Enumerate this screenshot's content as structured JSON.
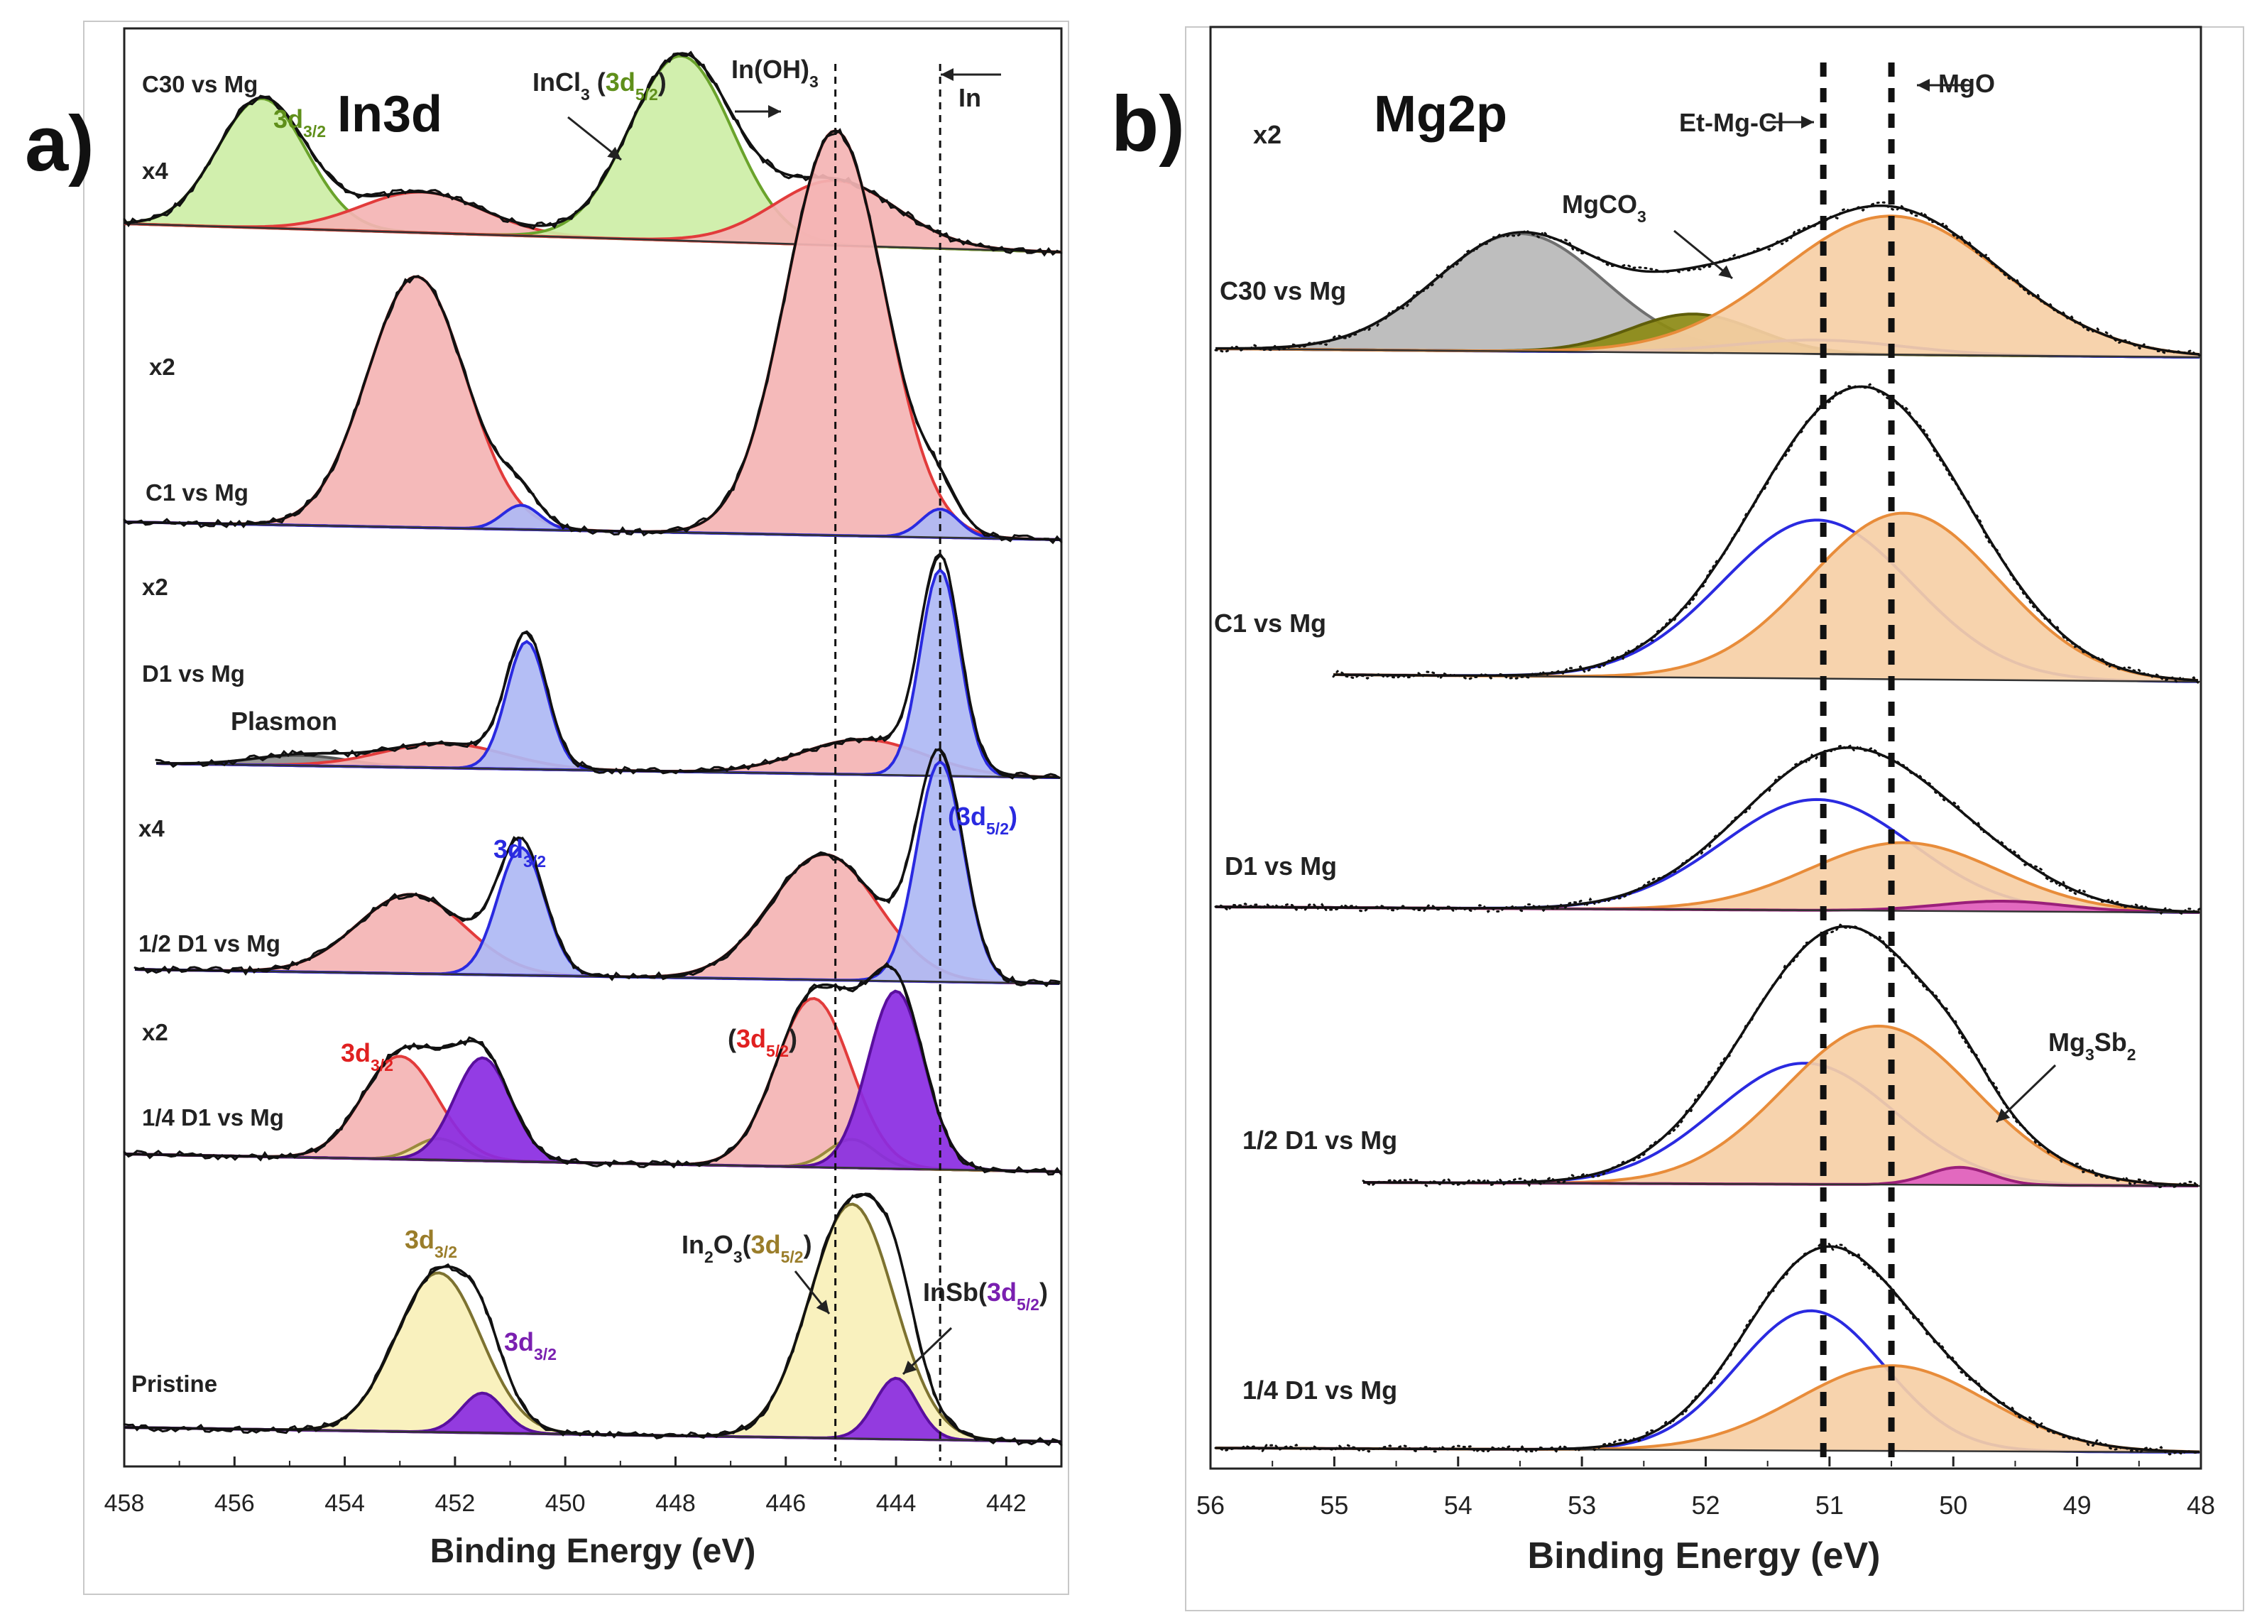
{
  "chart_data": [
    {
      "panel_label": "a)",
      "title": "In3d",
      "type": "line",
      "xlabel": "Binding Energy (eV)",
      "xlim": [
        458,
        441
      ],
      "x_ticks": [
        458,
        456,
        454,
        452,
        450,
        448,
        446,
        444,
        442
      ],
      "reference_lines": [
        445.1,
        443.2
      ],
      "top_labels": [
        {
          "text": "InCl3 (3d5/2)",
          "parts": [
            [
              "InCl",
              "",
              "#222222"
            ],
            [
              "3",
              "sub",
              "#222222"
            ],
            [
              " (",
              "",
              "#222222"
            ],
            [
              "3d",
              "",
              "#5f8f1a"
            ],
            [
              "5/2",
              "sub",
              "#5f8f1a"
            ],
            [
              ")",
              "",
              "#222222"
            ]
          ]
        },
        {
          "text": "In(OH)3",
          "parts": [
            [
              "In(OH)",
              "",
              "#222222"
            ],
            [
              "3",
              "sub",
              "#222222"
            ]
          ]
        },
        {
          "text": "In",
          "parts": [
            [
              "In",
              "",
              "#222222"
            ]
          ]
        }
      ],
      "spectra": [
        {
          "sample": "C30 vs Mg",
          "multiplier": "x4",
          "components": [
            {
              "label": "InCl3 3d3/2",
              "center": 455.5,
              "height": 0.7,
              "fwhm": 1.9,
              "fill": "#cdeea6",
              "stroke": "#6aa32b"
            },
            {
              "label": "In(OH)3 3d3/2",
              "center": 452.6,
              "height": 0.22,
              "fwhm": 2.6,
              "fill": "#f4b4b4",
              "stroke": "#e23b3b"
            },
            {
              "label": "InCl3 3d5/2",
              "center": 447.9,
              "height": 1.0,
              "fwhm": 2.2,
              "fill": "#cdeea6",
              "stroke": "#6aa32b"
            },
            {
              "label": "In(OH)3 3d5/2",
              "center": 445.1,
              "height": 0.35,
              "fwhm": 2.6,
              "fill": "#f4b4b4",
              "stroke": "#e23b3b"
            }
          ],
          "peak_labels": [
            {
              "text": "3d3/2",
              "parts": [
                [
                  "3d",
                  "",
                  "#5f8f1a"
                ],
                [
                  "3/2",
                  "sub",
                  "#5f8f1a"
                ]
              ]
            }
          ]
        },
        {
          "sample": "C1 vs Mg",
          "multiplier": "x2",
          "components": [
            {
              "label": "In(OH)3 3d3/2",
              "center": 452.7,
              "height": 0.62,
              "fwhm": 2.1,
              "fill": "#f4b4b4",
              "stroke": "#e23b3b"
            },
            {
              "label": "In 3d3/2",
              "center": 450.8,
              "height": 0.06,
              "fwhm": 0.8,
              "fill": "#aeb8f4",
              "stroke": "#2a2ae0"
            },
            {
              "label": "In(OH)3 3d5/2",
              "center": 445.1,
              "height": 1.0,
              "fwhm": 2.1,
              "fill": "#f4b4b4",
              "stroke": "#e23b3b"
            },
            {
              "label": "In 3d5/2",
              "center": 443.2,
              "height": 0.07,
              "fwhm": 0.8,
              "fill": "#aeb8f4",
              "stroke": "#2a2ae0"
            }
          ],
          "peak_labels": []
        },
        {
          "sample": "D1 vs Mg",
          "multiplier": "x2",
          "components": [
            {
              "label": "Plasmon",
              "center": 454.8,
              "height": 0.05,
              "fwhm": 2.0,
              "fill": "#8e8e8e",
              "stroke": "#555555"
            },
            {
              "label": "In(OH)3 3d3/2",
              "center": 452.2,
              "height": 0.12,
              "fwhm": 2.6,
              "fill": "#f4b4b4",
              "stroke": "#e23b3b"
            },
            {
              "label": "In 3d3/2",
              "center": 450.7,
              "height": 0.62,
              "fwhm": 0.85,
              "fill": "#aeb8f4",
              "stroke": "#2a2ae0"
            },
            {
              "label": "In(OH)3 3d5/2",
              "center": 444.6,
              "height": 0.17,
              "fwhm": 2.6,
              "fill": "#f4b4b4",
              "stroke": "#e23b3b"
            },
            {
              "label": "In 3d5/2",
              "center": 443.2,
              "height": 1.0,
              "fwhm": 0.85,
              "fill": "#aeb8f4",
              "stroke": "#2a2ae0"
            }
          ],
          "peak_labels": [
            {
              "text": "Plasmon",
              "parts": [
                [
                  "Plasmon",
                  "",
                  "#222222"
                ]
              ]
            }
          ]
        },
        {
          "sample": "1/2 D1 vs Mg",
          "multiplier": "x4",
          "components": [
            {
              "label": "In(OH)3 3d3/2",
              "center": 452.8,
              "height": 0.36,
              "fwhm": 2.3,
              "fill": "#f4b4b4",
              "stroke": "#e23b3b"
            },
            {
              "label": "In 3d3/2",
              "center": 450.8,
              "height": 0.58,
              "fwhm": 1.0,
              "fill": "#aeb8f4",
              "stroke": "#2a2ae0"
            },
            {
              "label": "In(OH)3 3d5/2",
              "center": 445.3,
              "height": 0.57,
              "fwhm": 2.3,
              "fill": "#f4b4b4",
              "stroke": "#e23b3b"
            },
            {
              "label": "In 3d5/2",
              "center": 443.2,
              "height": 1.0,
              "fwhm": 1.0,
              "fill": "#aeb8f4",
              "stroke": "#2a2ae0"
            }
          ],
          "peak_labels": [
            {
              "text": "3d3/2",
              "parts": [
                [
                  "3d",
                  "",
                  "#2a2ae0"
                ],
                [
                  "3/2",
                  "sub",
                  "#2a2ae0"
                ]
              ]
            },
            {
              "text": "(3d5/2)",
              "parts": [
                [
                  "(",
                  "",
                  "#2a2ae0"
                ],
                [
                  "3d",
                  "",
                  "#2a2ae0"
                ],
                [
                  "5/2",
                  "sub",
                  "#2a2ae0"
                ],
                [
                  ")",
                  "",
                  "#2a2ae0"
                ]
              ]
            }
          ]
        },
        {
          "sample": "1/4 D1 vs Mg",
          "multiplier": "x2",
          "components": [
            {
              "label": "In(OH)3 3d3/2",
              "center": 453.0,
              "height": 0.58,
              "fwhm": 1.6,
              "fill": "#f4b4b4",
              "stroke": "#e23b3b"
            },
            {
              "label": "In2O3 3d3/2",
              "center": 452.3,
              "height": 0.12,
              "fwhm": 1.0,
              "fill": "#f1e3a6",
              "stroke": "#9a8a3c"
            },
            {
              "label": "InSb 3d3/2",
              "center": 451.5,
              "height": 0.58,
              "fwhm": 1.2,
              "fill": "#8a2be2",
              "stroke": "#5a0f9e"
            },
            {
              "label": "In(OH)3 3d5/2",
              "center": 445.5,
              "height": 0.95,
              "fwhm": 1.6,
              "fill": "#f4b4b4",
              "stroke": "#e23b3b"
            },
            {
              "label": "In2O3 3d5/2",
              "center": 444.8,
              "height": 0.16,
              "fwhm": 1.0,
              "fill": "#f1e3a6",
              "stroke": "#9a8a3c"
            },
            {
              "label": "InSb 3d5/2",
              "center": 444.0,
              "height": 1.0,
              "fwhm": 1.2,
              "fill": "#8a2be2",
              "stroke": "#5a0f9e"
            }
          ],
          "peak_labels": [
            {
              "text": "3d3/2",
              "parts": [
                [
                  "3d",
                  "",
                  "#e02020"
                ],
                [
                  "3/2",
                  "sub",
                  "#e02020"
                ]
              ]
            },
            {
              "text": "(3d5/2)",
              "parts": [
                [
                  "(",
                  "",
                  "#222222"
                ],
                [
                  "3d",
                  "",
                  "#e02020"
                ],
                [
                  "5/2",
                  "sub",
                  "#e02020"
                ],
                [
                  ")",
                  "",
                  "#222222"
                ]
              ]
            }
          ]
        },
        {
          "sample": "Pristine",
          "multiplier": "",
          "components": [
            {
              "label": "In2O3 3d3/2",
              "center": 452.3,
              "height": 0.68,
              "fwhm": 1.8,
              "fill": "#f8f0b8",
              "stroke": "#7d7230"
            },
            {
              "label": "InSb 3d3/2",
              "center": 451.5,
              "height": 0.17,
              "fwhm": 0.9,
              "fill": "#8a2be2",
              "stroke": "#5a0f9e"
            },
            {
              "label": "In2O3 3d5/2",
              "center": 444.8,
              "height": 1.0,
              "fwhm": 1.8,
              "fill": "#f8f0b8",
              "stroke": "#7d7230"
            },
            {
              "label": "InSb 3d5/2",
              "center": 444.0,
              "height": 0.26,
              "fwhm": 0.9,
              "fill": "#8a2be2",
              "stroke": "#5a0f9e"
            }
          ],
          "peak_labels": [
            {
              "text": "3d3/2",
              "parts": [
                [
                  "3d",
                  "",
                  "#9a7d2a"
                ],
                [
                  "3/2",
                  "sub",
                  "#9a7d2a"
                ]
              ]
            },
            {
              "text": "3d3/2",
              "parts": [
                [
                  "3d",
                  "",
                  "#7a1fb0"
                ],
                [
                  "3/2",
                  "sub",
                  "#7a1fb0"
                ]
              ]
            },
            {
              "text": "In2O3(3d5/2)",
              "parts": [
                [
                  "In",
                  "",
                  "#222222"
                ],
                [
                  "2",
                  "sub",
                  "#222222"
                ],
                [
                  "O",
                  "",
                  "#222222"
                ],
                [
                  "3",
                  "sub",
                  "#222222"
                ],
                [
                  "(",
                  "",
                  "#222222"
                ],
                [
                  "3d",
                  "",
                  "#9a7d2a"
                ],
                [
                  "5/2",
                  "sub",
                  "#9a7d2a"
                ],
                [
                  ")",
                  "",
                  "#222222"
                ]
              ]
            },
            {
              "text": "InSb(3d5/2)",
              "parts": [
                [
                  "InSb(",
                  "",
                  "#222222"
                ],
                [
                  "3d",
                  "",
                  "#7a1fb0"
                ],
                [
                  "5/2",
                  "sub",
                  "#7a1fb0"
                ],
                [
                  ")",
                  "",
                  "#222222"
                ]
              ]
            }
          ]
        }
      ]
    },
    {
      "panel_label": "b)",
      "title": "Mg2p",
      "type": "line",
      "xlabel": "Binding Energy (eV)",
      "xlim": [
        56,
        48
      ],
      "x_ticks": [
        56,
        55,
        54,
        53,
        52,
        51,
        50,
        49,
        48
      ],
      "reference_lines": [
        51.05,
        50.5
      ],
      "top_labels": [
        {
          "text": "Et-Mg-Cl",
          "parts": [
            [
              "Et-Mg-Cl",
              "",
              "#222222"
            ]
          ]
        },
        {
          "text": "MgO",
          "parts": [
            [
              "MgO",
              "",
              "#222222"
            ]
          ]
        }
      ],
      "spectra": [
        {
          "sample": "C30 vs Mg",
          "multiplier": "x2",
          "components": [
            {
              "label": "MgCO3",
              "center": 53.5,
              "height": 0.85,
              "fwhm": 1.6,
              "fill": "#b8b8b8",
              "stroke": "#707070"
            },
            {
              "label": "MgCl-like",
              "center": 52.1,
              "height": 0.28,
              "fwhm": 1.2,
              "fill": "#8c8a14",
              "stroke": "#5f5e0a"
            },
            {
              "label": "Et-Mg-Cl",
              "center": 51.1,
              "height": 0.1,
              "fwhm": 1.6,
              "fill": "none",
              "stroke": "#2a2ae0"
            },
            {
              "label": "MgO",
              "center": 50.5,
              "height": 1.0,
              "fwhm": 2.1,
              "fill": "#f6cfa6",
              "stroke": "#e88c3a"
            }
          ],
          "peak_labels": [
            {
              "text": "MgCO3",
              "parts": [
                [
                  "MgCO",
                  "",
                  "#222222"
                ],
                [
                  "3",
                  "sub",
                  "#222222"
                ]
              ]
            }
          ]
        },
        {
          "sample": "C1 vs Mg",
          "multiplier": "",
          "components": [
            {
              "label": "Et-Mg-Cl",
              "center": 51.1,
              "height": 0.62,
              "fwhm": 1.8,
              "fill": "none",
              "stroke": "#2a2ae0"
            },
            {
              "label": "MgO",
              "center": 50.4,
              "height": 0.65,
              "fwhm": 1.8,
              "fill": "#f6cfa6",
              "stroke": "#e88c3a"
            }
          ],
          "peak_labels": []
        },
        {
          "sample": "D1 vs Mg",
          "multiplier": "",
          "components": [
            {
              "label": "Et-Mg-Cl",
              "center": 51.1,
              "height": 0.65,
              "fwhm": 1.8,
              "fill": "none",
              "stroke": "#2a2ae0"
            },
            {
              "label": "MgO",
              "center": 50.4,
              "height": 0.4,
              "fwhm": 1.8,
              "fill": "#f6cfa6",
              "stroke": "#e88c3a"
            },
            {
              "label": "Mg3Sb2",
              "center": 49.6,
              "height": 0.06,
              "fwhm": 1.2,
              "fill": "#e060c0",
              "stroke": "#9a1f7a"
            }
          ],
          "peak_labels": []
        },
        {
          "sample": "1/2 D1 vs Mg",
          "multiplier": "",
          "components": [
            {
              "label": "Et-Mg-Cl",
              "center": 51.2,
              "height": 0.55,
              "fwhm": 1.7,
              "fill": "none",
              "stroke": "#2a2ae0"
            },
            {
              "label": "MgO",
              "center": 50.6,
              "height": 0.72,
              "fwhm": 1.8,
              "fill": "#f6cfa6",
              "stroke": "#e88c3a"
            },
            {
              "label": "Mg3Sb2",
              "center": 49.95,
              "height": 0.08,
              "fwhm": 0.6,
              "fill": "#e060c0",
              "stroke": "#9a1f7a"
            }
          ],
          "peak_labels": [
            {
              "text": "Mg3Sb2",
              "parts": [
                [
                  "Mg",
                  "",
                  "#222222"
                ],
                [
                  "3",
                  "sub",
                  "#222222"
                ],
                [
                  "Sb",
                  "",
                  "#222222"
                ],
                [
                  "2",
                  "sub",
                  "#222222"
                ]
              ]
            }
          ]
        },
        {
          "sample": "1/4 D1 vs Mg",
          "multiplier": "",
          "components": [
            {
              "label": "Et-Mg-Cl",
              "center": 51.15,
              "height": 0.82,
              "fwhm": 1.4,
              "fill": "none",
              "stroke": "#2a2ae0"
            },
            {
              "label": "MgO",
              "center": 50.5,
              "height": 0.5,
              "fwhm": 1.8,
              "fill": "#f6cfa6",
              "stroke": "#e88c3a"
            }
          ],
          "peak_labels": []
        }
      ]
    }
  ]
}
